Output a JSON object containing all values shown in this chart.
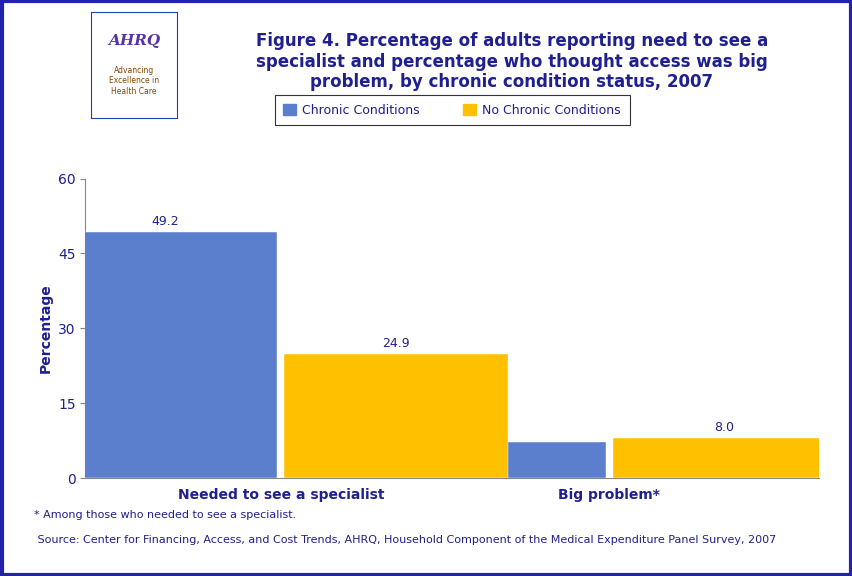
{
  "title": "Figure 4. Percentage of adults reporting need to see a\nspecialist and percentage who thought access was big\nproblem, by chronic condition status, 2007",
  "title_color": "#1f1f8f",
  "title_fontsize": 12,
  "categories": [
    "Needed to see a specialist",
    "Big problem*"
  ],
  "series": [
    {
      "label": "Chronic Conditions",
      "values": [
        49.2,
        7.3
      ],
      "color": "#5b7fcc"
    },
    {
      "label": "No Chronic Conditions",
      "values": [
        24.9,
        8.0
      ],
      "color": "#ffc000"
    }
  ],
  "ylabel": "Percentage",
  "ylim": [
    0,
    60
  ],
  "yticks": [
    0,
    15,
    30,
    45,
    60
  ],
  "bar_width": 0.32,
  "legend_box": true,
  "footnote1": "* Among those who needed to see a specialist.",
  "footnote2": " Source: Center for Financing, Access, and Cost Trends, AHRQ, Household Component of the Medical Expenditure Panel Survey, 2007",
  "background_color": "#ffffff",
  "outer_border_color": "#2222aa",
  "header_line_color": "#1f1f8f",
  "header_line2_color": "#6688cc",
  "bar_label_fontsize": 9,
  "ylabel_fontsize": 10,
  "xtick_fontsize": 10,
  "legend_fontsize": 9,
  "footnote_fontsize": 8,
  "header_bg": "#d0e0f0",
  "logo_bg": "#5599cc"
}
